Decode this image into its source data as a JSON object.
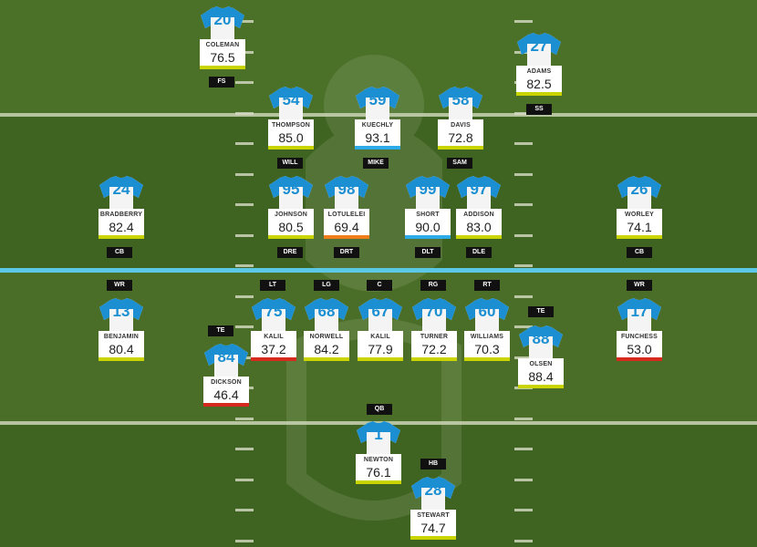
{
  "colors": {
    "green": "#c9d400",
    "red": "#d62a1e",
    "orange": "#ef7d1a",
    "blue": "#2dabe8",
    "jersey_accent": "#1b8fd2"
  },
  "players": {
    "coleman": {
      "number": "20",
      "name": "COLEMAN",
      "rating": "76.5",
      "pos": "FS"
    },
    "adams": {
      "number": "27",
      "name": "ADAMS",
      "rating": "82.5",
      "pos": "SS"
    },
    "thompson": {
      "number": "54",
      "name": "THOMPSON",
      "rating": "85.0",
      "pos": "WILL"
    },
    "kuechly": {
      "number": "59",
      "name": "KUECHLY",
      "rating": "93.1",
      "pos": "MIKE"
    },
    "davis": {
      "number": "58",
      "name": "DAVIS",
      "rating": "72.8",
      "pos": "SAM"
    },
    "bradberry": {
      "number": "24",
      "name": "BRADBERRY",
      "rating": "82.4",
      "pos": "CB"
    },
    "johnson": {
      "number": "95",
      "name": "JOHNSON",
      "rating": "80.5",
      "pos": "DRE"
    },
    "lotulelei": {
      "number": "98",
      "name": "LOTULELEI",
      "rating": "69.4",
      "pos": "DRT"
    },
    "short": {
      "number": "99",
      "name": "SHORT",
      "rating": "90.0",
      "pos": "DLT"
    },
    "addison": {
      "number": "97",
      "name": "ADDISON",
      "rating": "83.0",
      "pos": "DLE"
    },
    "worley": {
      "number": "26",
      "name": "WORLEY",
      "rating": "74.1",
      "pos": "CB"
    },
    "benjamin": {
      "number": "13",
      "name": "BENJAMIN",
      "rating": "80.4",
      "pos": "WR"
    },
    "kalil_lt": {
      "number": "75",
      "name": "KALIL",
      "rating": "37.2",
      "pos": "LT"
    },
    "norwell": {
      "number": "68",
      "name": "NORWELL",
      "rating": "84.2",
      "pos": "LG"
    },
    "kalil_c": {
      "number": "67",
      "name": "KALIL",
      "rating": "77.9",
      "pos": "C"
    },
    "turner": {
      "number": "70",
      "name": "TURNER",
      "rating": "72.2",
      "pos": "RG"
    },
    "williams": {
      "number": "60",
      "name": "WILLIAMS",
      "rating": "70.3",
      "pos": "RT"
    },
    "funchess": {
      "number": "17",
      "name": "FUNCHESS",
      "rating": "53.0",
      "pos": "WR"
    },
    "dickson": {
      "number": "84",
      "name": "DICKSON",
      "rating": "46.4",
      "pos": "TE"
    },
    "olsen": {
      "number": "88",
      "name": "OLSEN",
      "rating": "88.4",
      "pos": "TE"
    },
    "newton": {
      "number": "1",
      "name": "NEWTON",
      "rating": "76.1",
      "pos": "QB"
    },
    "stewart": {
      "number": "28",
      "name": "STEWART",
      "rating": "74.7",
      "pos": "HB"
    }
  }
}
